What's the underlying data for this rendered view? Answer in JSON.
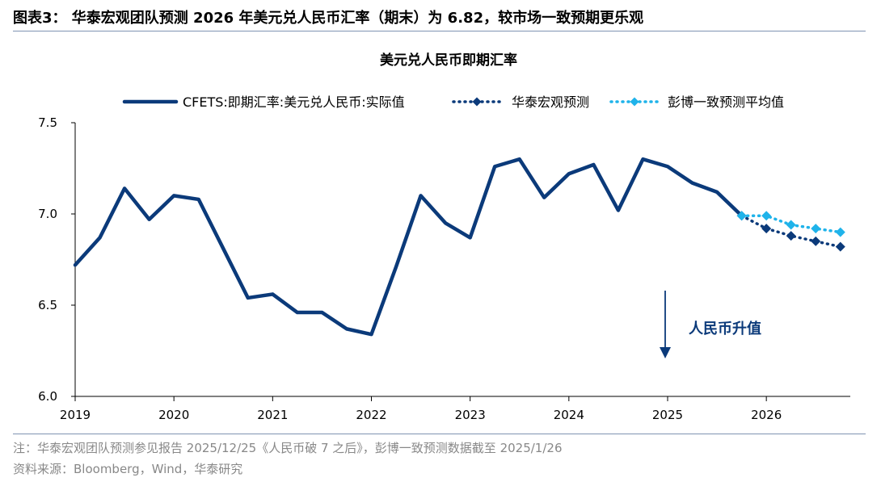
{
  "header": {
    "title": "图表3：  华泰宏观团队预测 2026 年美元兑人民币汇率（期末）为 6.82，较市场一致预期更乐观"
  },
  "footer": {
    "note": "注：华泰宏观团队预测参见报告 2025/12/25《人民币破 7 之后》，彭博一致预测数据截至 2025/1/26",
    "source": "资料来源：Bloomberg，Wind，华泰研究"
  },
  "chart_data": {
    "type": "line",
    "title": "美元兑人民币即期汇率",
    "xlabel": "",
    "ylabel": "",
    "xlim": [
      2019.0,
      2026.85
    ],
    "ylim": [
      6.0,
      7.5
    ],
    "x_ticks": [
      2019,
      2020,
      2021,
      2022,
      2023,
      2024,
      2025,
      2026
    ],
    "x_tick_labels": [
      "2019",
      "2020",
      "2021",
      "2022",
      "2023",
      "2024",
      "2025",
      "2026"
    ],
    "y_ticks": [
      6.0,
      6.5,
      7.0,
      7.5
    ],
    "y_tick_labels": [
      "6.0",
      "6.5",
      "7.0",
      "7.5"
    ],
    "legend_position": "top",
    "series": [
      {
        "name": "CFETS:即期汇率:美元兑人民币:实际值",
        "style": "solid",
        "color": "#0b3a7a",
        "x": [
          2019.0,
          2019.25,
          2019.5,
          2019.75,
          2020.0,
          2020.25,
          2020.5,
          2020.75,
          2021.0,
          2021.25,
          2021.5,
          2021.75,
          2022.0,
          2022.25,
          2022.5,
          2022.75,
          2023.0,
          2023.25,
          2023.5,
          2023.75,
          2024.0,
          2024.25,
          2024.5,
          2024.75,
          2025.0,
          2025.25,
          2025.5,
          2025.75
        ],
        "values": [
          6.72,
          6.87,
          7.14,
          6.97,
          7.1,
          7.08,
          6.81,
          6.54,
          6.56,
          6.46,
          6.46,
          6.37,
          6.34,
          6.71,
          7.1,
          6.95,
          6.87,
          7.26,
          7.3,
          7.09,
          7.22,
          7.27,
          7.02,
          7.3,
          7.26,
          7.17,
          7.12,
          6.99
        ]
      },
      {
        "name": "华泰宏观预测",
        "style": "dotted-diamond",
        "color": "#0b3a7a",
        "x": [
          2025.75,
          2026.0,
          2026.25,
          2026.5,
          2026.75
        ],
        "values": [
          6.99,
          6.92,
          6.88,
          6.85,
          6.82
        ]
      },
      {
        "name": "彭博一致预测平均值",
        "style": "dotted-diamond",
        "color": "#1fb3ea",
        "x": [
          2025.75,
          2026.0,
          2026.25,
          2026.5,
          2026.75
        ],
        "values": [
          6.99,
          6.99,
          6.94,
          6.92,
          6.9
        ]
      }
    ],
    "annotations": [
      {
        "text": "人民币升值",
        "arrow": "down",
        "x": 2025.0
      }
    ]
  }
}
